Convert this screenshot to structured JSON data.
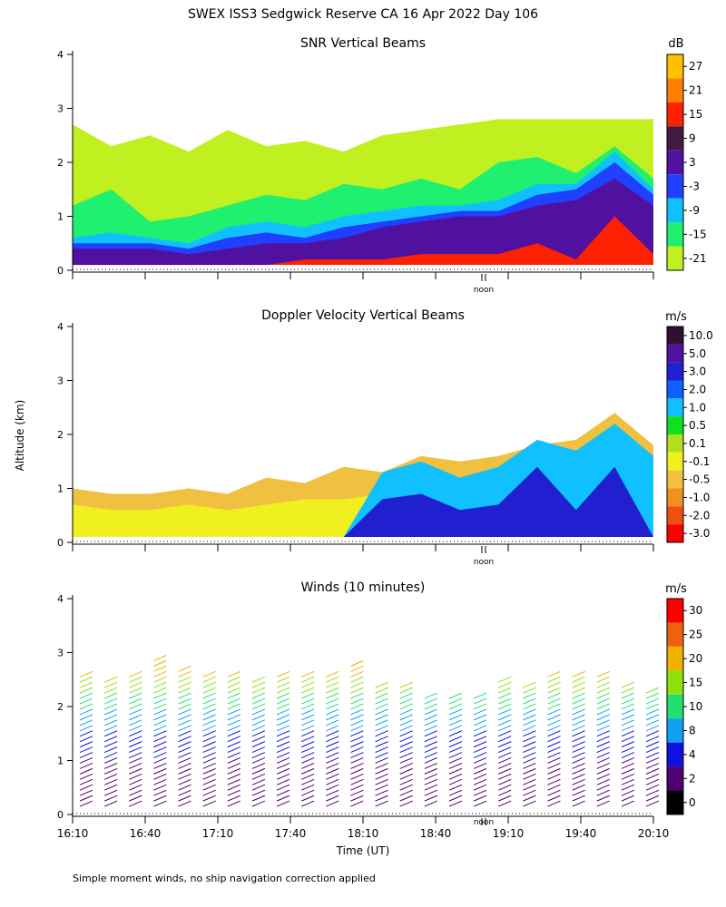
{
  "figure": {
    "title": "SWEX ISS3 Sedgwick Reserve CA  16 Apr 2022 Day 106",
    "ylabel": "Altitude (km)",
    "xlabel": "Time (UT)",
    "noon_label": "noon",
    "footnote": "Simple moment winds, no ship navigation correction applied"
  },
  "chart_data": [
    {
      "type": "heatmap",
      "title": "SNR Vertical Beams",
      "xlabel": "Time (UT)",
      "ylabel": "Altitude (km)",
      "xlim": [
        16.1667,
        20.1667
      ],
      "ylim": [
        0,
        4
      ],
      "yticks": [
        0,
        1,
        2,
        3,
        4
      ],
      "colorbar": {
        "unit": "dB",
        "labels": [
          "27",
          "21",
          "15",
          "9",
          "3",
          "-3",
          "-9",
          "-15",
          "-21"
        ],
        "colors": [
          "#ffc000",
          "#ff8000",
          "#ff2000",
          "#401a40",
          "#5010a0",
          "#2040ff",
          "#10c0ff",
          "#20f070",
          "#c0f020"
        ]
      },
      "layers": [
        {
          "level": "-21",
          "top_km": [
            2.7,
            2.3,
            2.5,
            2.2,
            2.6,
            2.3,
            2.4,
            2.2,
            2.5,
            2.6,
            2.7,
            2.8,
            2.8,
            2.8,
            2.8,
            2.8
          ]
        },
        {
          "level": "-15",
          "top_km": [
            1.2,
            1.5,
            0.9,
            1.0,
            1.2,
            1.4,
            1.3,
            1.6,
            1.5,
            1.7,
            1.5,
            2.0,
            2.1,
            1.8,
            2.3,
            1.7
          ]
        },
        {
          "level": "-9",
          "top_km": [
            0.6,
            0.7,
            0.6,
            0.5,
            0.8,
            0.9,
            0.8,
            1.0,
            1.1,
            1.2,
            1.2,
            1.3,
            1.6,
            1.6,
            2.2,
            1.5
          ]
        },
        {
          "level": "-3",
          "top_km": [
            0.5,
            0.5,
            0.5,
            0.4,
            0.6,
            0.7,
            0.6,
            0.8,
            0.9,
            1.0,
            1.1,
            1.1,
            1.4,
            1.5,
            2.0,
            1.4
          ]
        },
        {
          "level": "3",
          "top_km": [
            0.4,
            0.4,
            0.4,
            0.3,
            0.4,
            0.5,
            0.5,
            0.6,
            0.8,
            0.9,
            1.0,
            1.0,
            1.2,
            1.3,
            1.7,
            1.2
          ]
        },
        {
          "level": "15",
          "top_km": [
            0.1,
            0.1,
            0.1,
            0.1,
            0.1,
            0.1,
            0.2,
            0.2,
            0.2,
            0.3,
            0.3,
            0.3,
            0.5,
            0.2,
            1.0,
            0.3
          ]
        }
      ]
    },
    {
      "type": "heatmap",
      "title": "Doppler Velocity Vertical Beams",
      "xlabel": "Time (UT)",
      "ylabel": "Altitude (km)",
      "xlim": [
        16.1667,
        20.1667
      ],
      "ylim": [
        0,
        4
      ],
      "yticks": [
        0,
        1,
        2,
        3,
        4
      ],
      "colorbar": {
        "unit": "m/s",
        "labels": [
          "10.0",
          "5.0",
          "3.0",
          "2.0",
          "1.0",
          "0.5",
          "0.1",
          "-0.1",
          "-0.5",
          "-1.0",
          "-2.0",
          "-3.0"
        ],
        "colors": [
          "#301030",
          "#5010a0",
          "#2020d0",
          "#1060ff",
          "#10c0ff",
          "#10e020",
          "#b0e020",
          "#f0f020",
          "#f0c040",
          "#f09020",
          "#f05010",
          "#ff0000"
        ]
      },
      "layers": [
        {
          "level": "-0.5",
          "top_km": [
            1.0,
            0.9,
            0.9,
            1.0,
            0.9,
            1.2,
            1.1,
            1.4,
            1.3,
            1.6,
            1.5,
            1.6,
            1.8,
            1.9,
            2.4,
            1.8
          ]
        },
        {
          "level": "-0.1",
          "top_km": [
            0.7,
            0.6,
            0.6,
            0.7,
            0.6,
            0.7,
            0.8,
            0.8,
            0.9,
            0.8,
            0.9,
            1.0,
            1.0,
            1.0,
            1.0,
            1.0
          ]
        },
        {
          "level": "1.0",
          "top_km": [
            0.0,
            0.0,
            0.0,
            0.0,
            0.0,
            0.0,
            0.0,
            0.0,
            1.3,
            1.5,
            1.2,
            1.4,
            1.9,
            1.7,
            2.2,
            1.6
          ]
        },
        {
          "level": "3.0",
          "top_km": [
            0.0,
            0.0,
            0.0,
            0.0,
            0.0,
            0.0,
            0.0,
            0.0,
            0.8,
            0.9,
            0.6,
            0.7,
            1.4,
            0.6,
            1.4,
            0.0
          ]
        }
      ]
    },
    {
      "type": "scatter",
      "title": "Winds (10 minutes)",
      "xlabel": "Time (UT)",
      "ylabel": "Altitude (km)",
      "xlim": [
        16.1667,
        20.1667
      ],
      "ylim": [
        0,
        4
      ],
      "yticks": [
        0,
        1,
        2,
        3,
        4
      ],
      "xticks": [
        "16:10",
        "16:40",
        "17:10",
        "17:40",
        "18:10",
        "18:40",
        "19:10",
        "19:40",
        "20:10"
      ],
      "colorbar": {
        "unit": "m/s",
        "labels": [
          "30",
          "25",
          "20",
          "15",
          "10",
          "8",
          "4",
          "2",
          "0"
        ],
        "colors": [
          "#ff0000",
          "#f06010",
          "#f0b000",
          "#90e010",
          "#20e070",
          "#10a0f0",
          "#1010e0",
          "#500070",
          "#000000"
        ]
      },
      "barb_columns": 24,
      "barb_max_altitude_km": [
        2.6,
        2.5,
        2.6,
        2.9,
        2.7,
        2.6,
        2.6,
        2.5,
        2.6,
        2.6,
        2.6,
        2.8,
        2.4,
        2.4,
        2.2,
        2.2,
        2.2,
        2.5,
        2.4,
        2.6,
        2.6,
        2.6,
        2.4,
        2.3
      ],
      "barb_color_scale_km": [
        {
          "below_km": 1.0,
          "color": "#500070"
        },
        {
          "below_km": 1.5,
          "color": "#1010e0"
        },
        {
          "below_km": 1.9,
          "color": "#10a0f0"
        },
        {
          "below_km": 2.2,
          "color": "#20e070"
        },
        {
          "below_km": 2.5,
          "color": "#90e010"
        },
        {
          "below_km": 4.0,
          "color": "#f0b000"
        }
      ]
    }
  ]
}
